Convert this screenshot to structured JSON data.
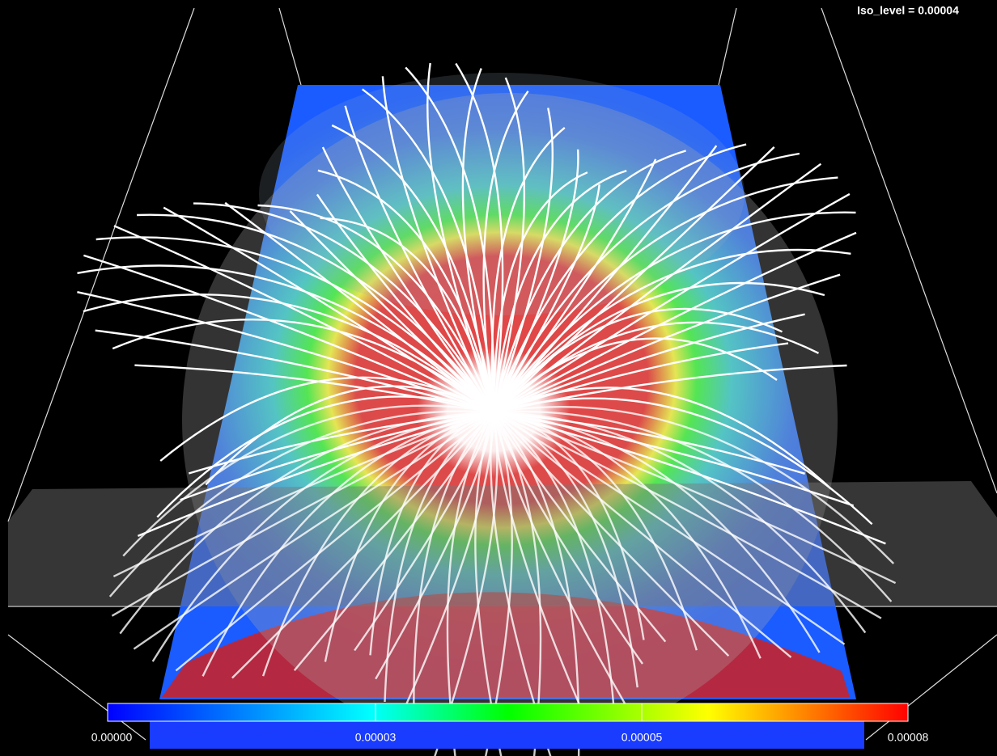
{
  "annotation": "Iso_level = 0.00004",
  "colorbar": {
    "tick_labels": [
      "0.00000",
      "0.00003",
      "0.00005",
      "0.00008"
    ]
  }
}
